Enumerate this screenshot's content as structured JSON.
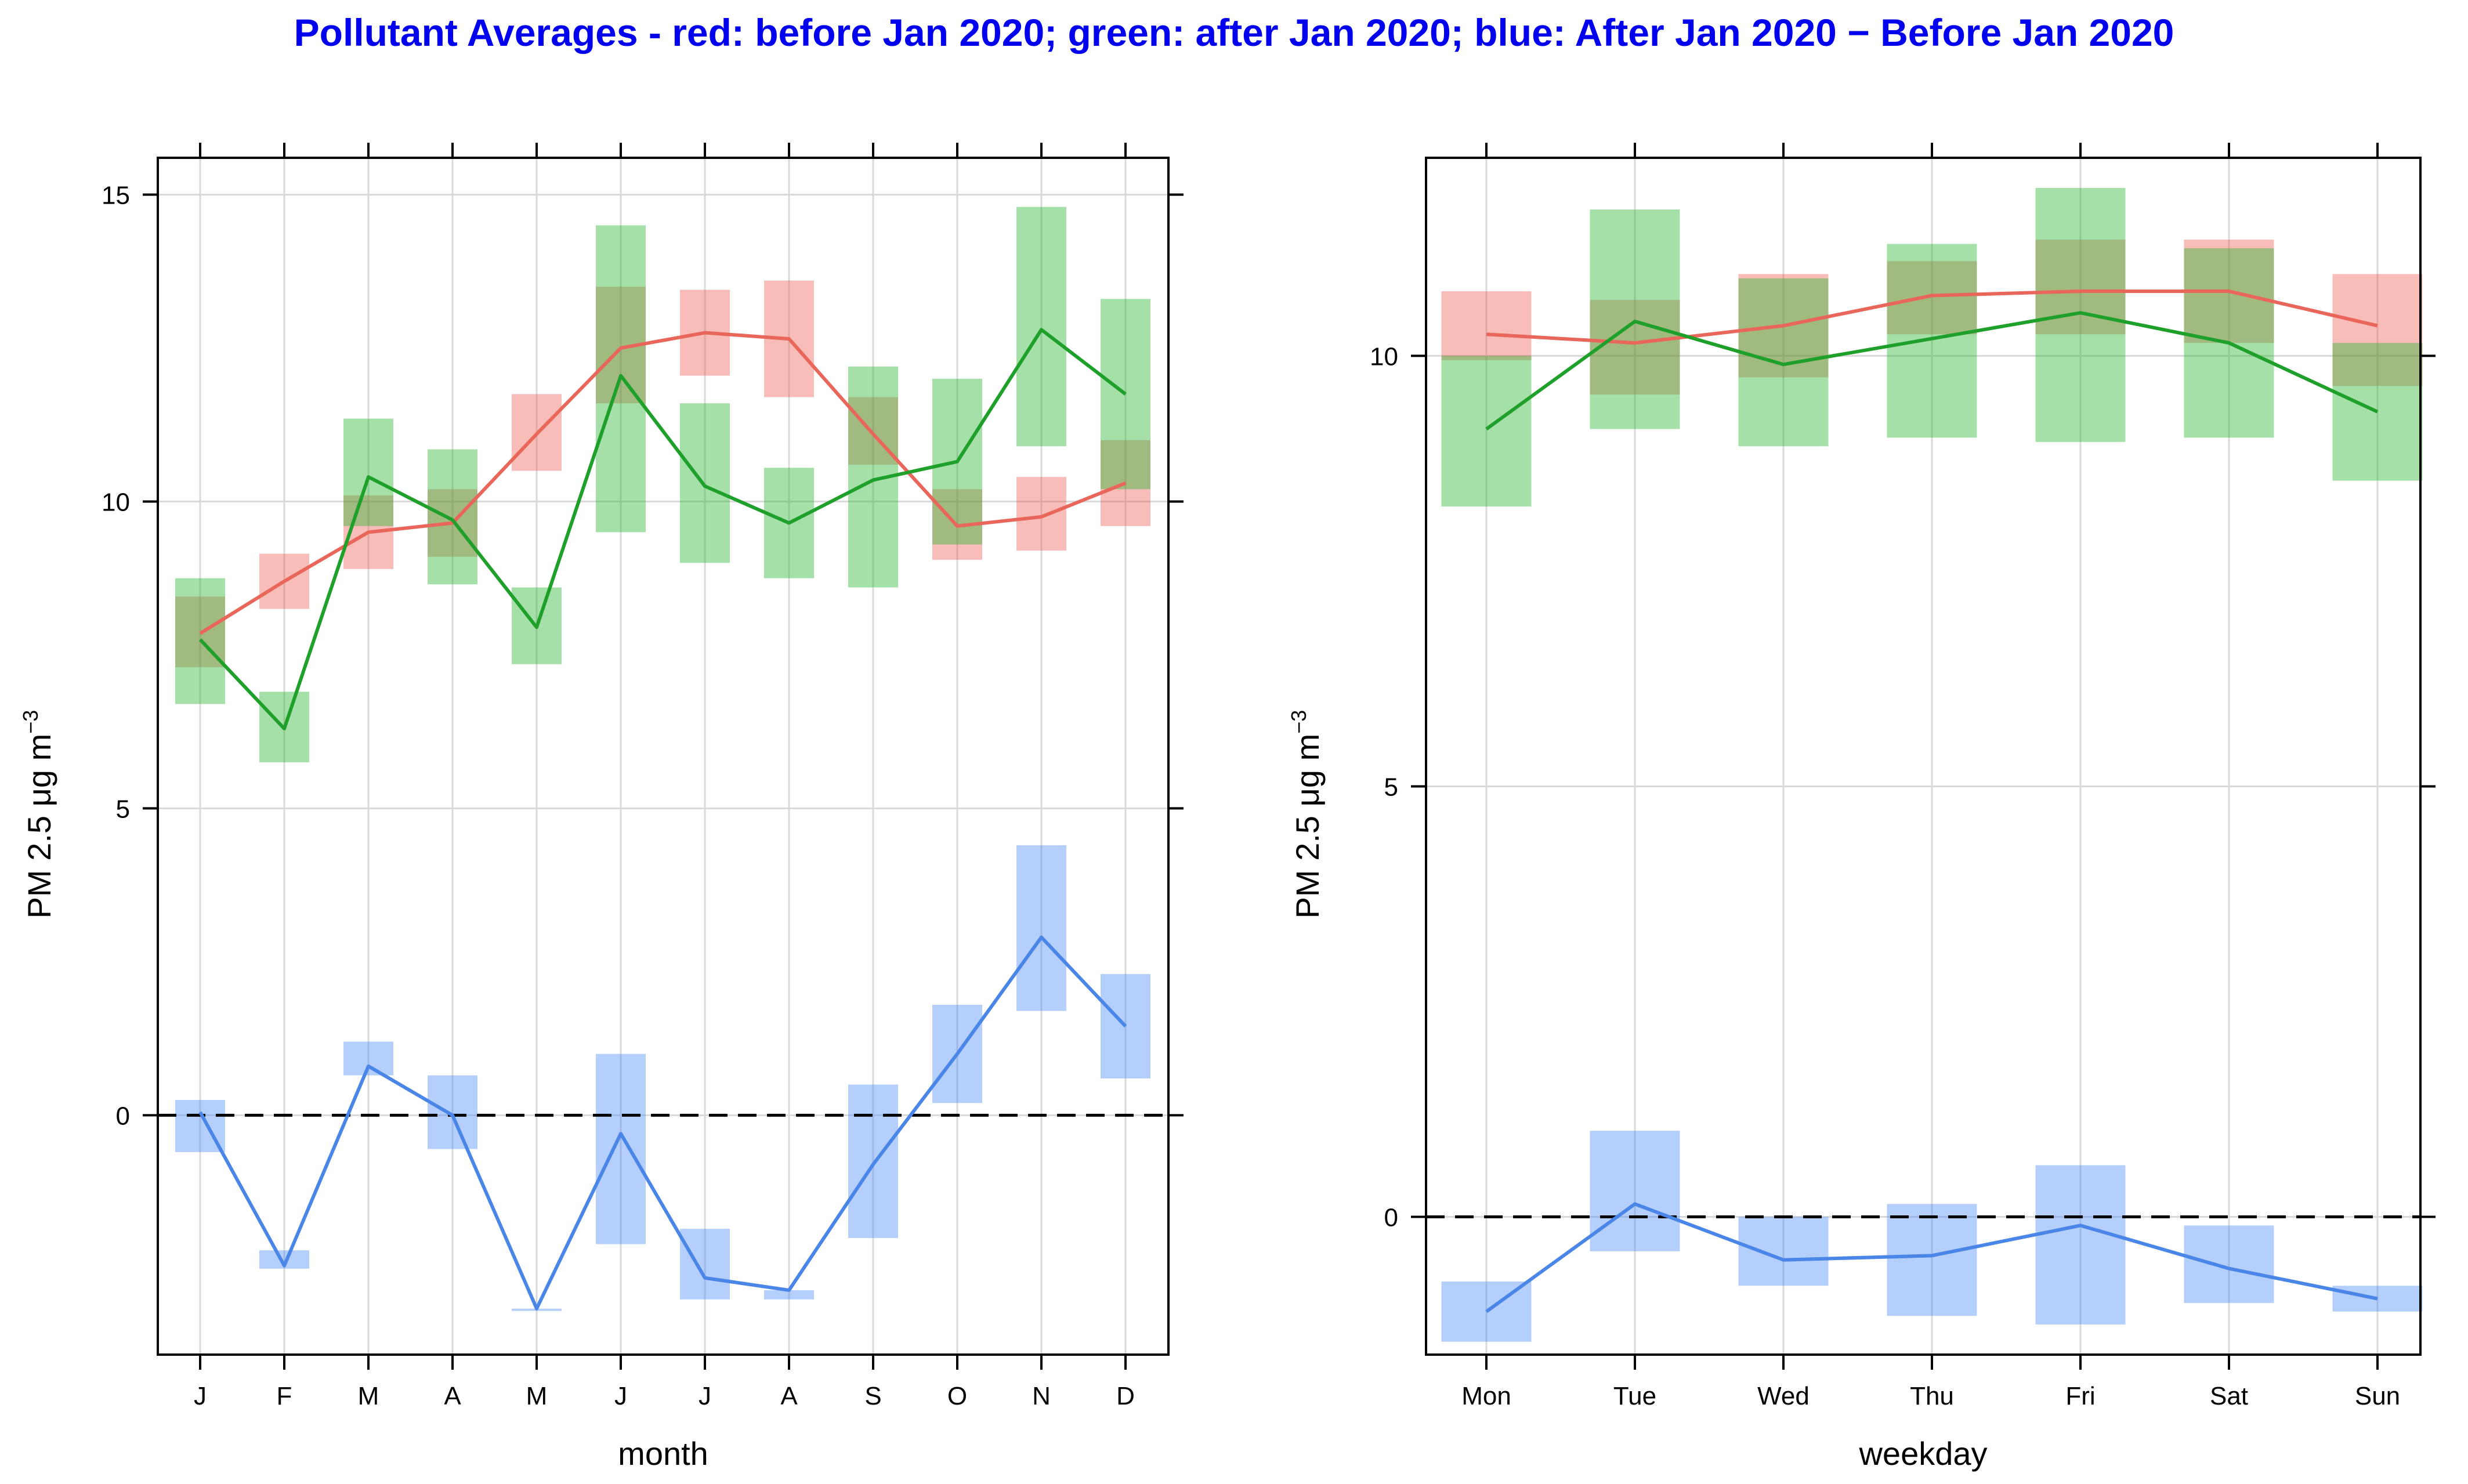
{
  "title": "Pollutant Averages - red: before Jan 2020; green: after Jan 2020; blue: After Jan 2020 − Before Jan 2020",
  "colors": {
    "title": "#0000ee",
    "before": "#e8665a",
    "after": "#1fa02a",
    "diff": "#4a86e8"
  },
  "chart_data": [
    {
      "type": "line",
      "xlabel": "month",
      "ylabel_text": "PM 2.5 μg m",
      "ylabel_sup": "−3",
      "ylim": [
        -3.9,
        15.6
      ],
      "yticks": [
        0,
        5,
        10,
        15
      ],
      "reference_line": 0,
      "categories": [
        "J",
        "F",
        "M",
        "A",
        "M",
        "J",
        "J",
        "A",
        "S",
        "O",
        "N",
        "D"
      ],
      "series": [
        {
          "name": "before Jan 2020",
          "color": "#e8665a",
          "values": [
            7.85,
            8.7,
            9.5,
            9.65,
            11.1,
            12.5,
            12.75,
            12.65,
            11.1,
            9.6,
            9.75,
            10.3
          ],
          "lower": [
            7.3,
            8.25,
            8.9,
            9.1,
            10.5,
            11.6,
            12.05,
            11.7,
            10.6,
            9.05,
            9.2,
            9.6
          ],
          "upper": [
            8.45,
            9.15,
            10.1,
            10.2,
            11.75,
            13.5,
            13.45,
            13.6,
            11.7,
            10.2,
            10.4,
            11.0
          ]
        },
        {
          "name": "after Jan 2020",
          "color": "#1fa02a",
          "values": [
            7.75,
            6.3,
            10.4,
            9.7,
            7.95,
            12.05,
            10.25,
            9.65,
            10.35,
            10.65,
            12.8,
            11.75
          ],
          "lower": [
            6.7,
            5.75,
            9.6,
            8.65,
            7.35,
            9.5,
            9.0,
            8.75,
            8.6,
            9.3,
            10.9,
            10.2
          ],
          "upper": [
            8.75,
            6.9,
            11.35,
            10.85,
            8.6,
            14.5,
            11.6,
            10.55,
            12.2,
            12.0,
            14.8,
            13.3
          ]
        },
        {
          "name": "After Jan 2020 − Before Jan 2020",
          "color": "#4a86e8",
          "values": [
            0.05,
            -2.45,
            0.8,
            0.0,
            -3.15,
            -0.3,
            -2.65,
            -2.85,
            -0.8,
            1.0,
            2.9,
            1.45
          ],
          "lower": [
            -0.6,
            -2.5,
            0.65,
            -0.55,
            -3.15,
            -2.1,
            -3.0,
            -3.0,
            -2.0,
            0.2,
            1.7,
            0.6
          ],
          "upper": [
            0.25,
            -2.2,
            1.2,
            0.65,
            -3.15,
            1.0,
            -1.85,
            -2.85,
            0.5,
            1.8,
            4.4,
            2.3
          ]
        }
      ]
    },
    {
      "type": "line",
      "xlabel": "weekday",
      "ylabel_text": "PM 2.5 μg m",
      "ylabel_sup": "−3",
      "ylim": [
        -1.6,
        12.3
      ],
      "yticks": [
        0,
        5,
        10
      ],
      "reference_line": 0,
      "categories": [
        "Mon",
        "Tue",
        "Wed",
        "Thu",
        "Fri",
        "Sat",
        "Sun"
      ],
      "series": [
        {
          "name": "before Jan 2020",
          "color": "#e8665a",
          "values": [
            10.25,
            10.15,
            10.35,
            10.7,
            10.75,
            10.75,
            10.35
          ],
          "lower": [
            9.95,
            9.55,
            9.75,
            10.25,
            10.25,
            10.15,
            9.65
          ],
          "upper": [
            10.75,
            10.65,
            10.95,
            11.1,
            11.35,
            11.35,
            10.95
          ]
        },
        {
          "name": "after Jan 2020",
          "color": "#1fa02a",
          "values": [
            9.15,
            10.4,
            9.9,
            10.2,
            10.5,
            10.15,
            9.35
          ],
          "lower": [
            8.25,
            9.15,
            8.95,
            9.05,
            9.0,
            9.05,
            8.55
          ],
          "upper": [
            10.0,
            11.7,
            10.9,
            11.3,
            11.95,
            11.25,
            10.15
          ]
        },
        {
          "name": "After Jan 2020 − Before Jan 2020",
          "color": "#4a86e8",
          "values": [
            -1.1,
            0.15,
            -0.5,
            -0.45,
            -0.1,
            -0.6,
            -0.95
          ],
          "lower": [
            -1.45,
            -0.4,
            -0.8,
            -1.15,
            -1.25,
            -1.0,
            -1.1
          ],
          "upper": [
            -0.75,
            1.0,
            0.0,
            0.15,
            0.6,
            -0.1,
            -0.8
          ]
        }
      ]
    }
  ]
}
